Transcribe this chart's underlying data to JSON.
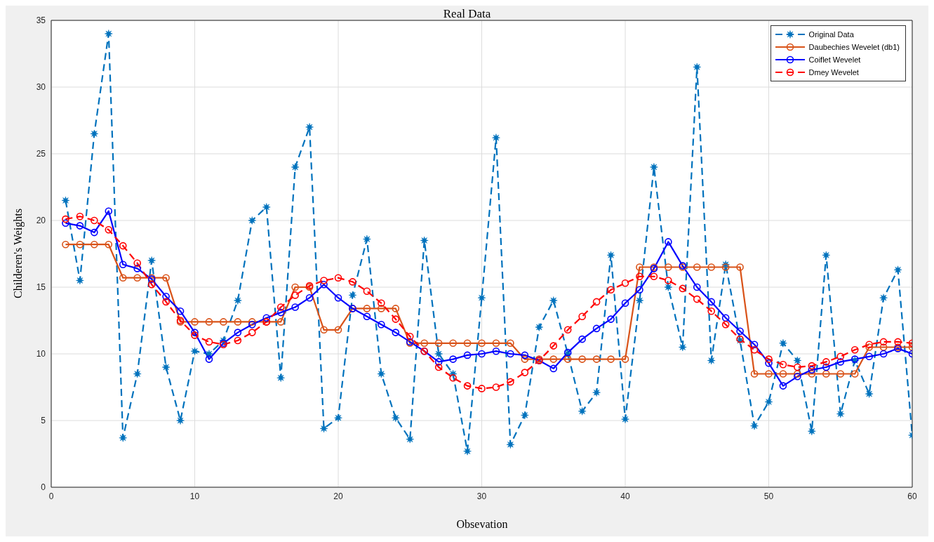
{
  "chart_data": {
    "type": "line",
    "title": "Real Data",
    "xlabel": "Obsevation",
    "ylabel": "Childeren's Weights",
    "x": [
      1,
      2,
      3,
      4,
      5,
      6,
      7,
      8,
      9,
      10,
      11,
      12,
      13,
      14,
      15,
      16,
      17,
      18,
      19,
      20,
      21,
      22,
      23,
      24,
      25,
      26,
      27,
      28,
      29,
      30,
      31,
      32,
      33,
      34,
      35,
      36,
      37,
      38,
      39,
      40,
      41,
      42,
      43,
      44,
      45,
      46,
      47,
      48,
      49,
      50,
      51,
      52,
      53,
      54,
      55,
      56,
      57,
      58,
      59,
      60
    ],
    "series": [
      {
        "name": "Original Data",
        "color": "#0072bd",
        "marker": "star",
        "line_style": "dashed",
        "values": [
          21.5,
          15.5,
          26.5,
          34,
          3.7,
          8.5,
          17,
          9,
          5,
          10.2,
          10,
          11,
          14,
          20,
          21,
          8.2,
          24,
          27,
          4.4,
          5.2,
          14.4,
          18.6,
          8.5,
          5.2,
          3.6,
          18.5,
          10,
          8.5,
          2.7,
          14.2,
          26.2,
          3.2,
          5.4,
          12,
          14,
          10,
          5.7,
          7.1,
          17.4,
          5.1,
          14,
          24,
          15,
          10.5,
          31.5,
          9.5,
          16.7,
          11,
          4.6,
          6.4,
          10.8,
          9.5,
          4.2,
          17.4,
          5.5,
          9.5,
          7,
          14.2,
          16.3,
          3.9
        ]
      },
      {
        "name": "Daubechies Wevelet (db1)",
        "color": "#d95319",
        "marker": "circle",
        "line_style": "solid",
        "values": [
          18.2,
          18.2,
          18.2,
          18.2,
          15.7,
          15.7,
          15.7,
          15.7,
          12.4,
          12.4,
          12.4,
          12.4,
          12.4,
          12.4,
          12.4,
          12.4,
          15,
          15,
          11.8,
          11.8,
          13.4,
          13.4,
          13.4,
          13.4,
          10.8,
          10.8,
          10.8,
          10.8,
          10.8,
          10.8,
          10.8,
          10.8,
          9.6,
          9.6,
          9.6,
          9.6,
          9.6,
          9.6,
          9.6,
          9.6,
          16.5,
          16.5,
          16.5,
          16.5,
          16.5,
          16.5,
          16.5,
          16.5,
          8.5,
          8.5,
          8.5,
          8.5,
          8.5,
          8.5,
          8.5,
          8.5,
          10.5,
          10.5,
          10.5,
          10.5
        ]
      },
      {
        "name": "Coiflet Wevelet",
        "color": "#0000ff",
        "marker": "circle",
        "line_style": "solid",
        "values": [
          19.8,
          19.6,
          19.1,
          20.7,
          16.7,
          16.4,
          15.6,
          14.3,
          13.2,
          11.6,
          9.6,
          10.8,
          11.6,
          12.2,
          12.7,
          13.1,
          13.5,
          14.2,
          15.2,
          14.2,
          13.4,
          12.8,
          12.2,
          11.6,
          10.9,
          10.2,
          9.4,
          9.6,
          9.9,
          10,
          10.2,
          10,
          9.9,
          9.5,
          8.9,
          10.1,
          11.1,
          11.9,
          12.6,
          13.8,
          14.8,
          16.4,
          18.4,
          16.6,
          15,
          13.9,
          12.7,
          11.7,
          10.7,
          9.3,
          7.6,
          8.3,
          8.8,
          9,
          9.4,
          9.6,
          9.8,
          10,
          10.4,
          10
        ]
      },
      {
        "name": "Dmey Wevelet",
        "color": "#ff0000",
        "marker": "circle",
        "line_style": "dashed",
        "values": [
          20.1,
          20.3,
          20,
          19.3,
          18.1,
          16.8,
          15.2,
          13.9,
          12.5,
          11.4,
          10.9,
          10.7,
          11,
          11.6,
          12.4,
          13.5,
          14.4,
          15.1,
          15.5,
          15.7,
          15.4,
          14.7,
          13.8,
          12.6,
          11.3,
          10.2,
          9,
          8.2,
          7.6,
          7.4,
          7.5,
          7.9,
          8.6,
          9.5,
          10.6,
          11.8,
          12.8,
          13.9,
          14.8,
          15.3,
          15.8,
          15.8,
          15.5,
          14.9,
          14.1,
          13.2,
          12.2,
          11.1,
          10.3,
          9.6,
          9.2,
          9,
          9.1,
          9.4,
          9.8,
          10.3,
          10.7,
          10.9,
          10.9,
          10.8
        ]
      }
    ],
    "xlim": [
      0,
      60
    ],
    "xticks": [
      0,
      10,
      20,
      30,
      40,
      50,
      60
    ],
    "ylim": [
      0,
      35
    ],
    "yticks": [
      0,
      5,
      10,
      15,
      20,
      25,
      30,
      35
    ],
    "grid": true,
    "legend": "top right"
  }
}
